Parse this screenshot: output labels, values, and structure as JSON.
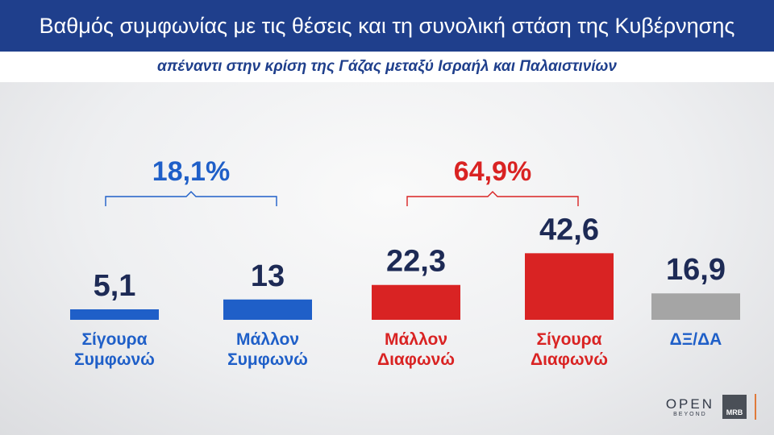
{
  "header": {
    "title": "Βαθμός συμφωνίας με τις θέσεις και τη συνολική στάση της Κυβέρνησης",
    "subtitle": "απέναντι στην κρίση της Γάζας μεταξύ Ισραήλ και Παλαιστινίων"
  },
  "chart_data": {
    "type": "bar",
    "title": "Βαθμός συμφωνίας με τις θέσεις και τη συνολική στάση της Κυβέρνησης",
    "subtitle": "απέναντι στην κρίση της Γάζας μεταξύ Ισραήλ και Παλαιστινίων",
    "categories": [
      "Σίγουρα Συμφωνώ",
      "Μάλλον Συμφωνώ",
      "Μάλλον Διαφωνώ",
      "Σίγουρα Διαφωνώ",
      "ΔΞ/ΔΑ"
    ],
    "category_lines": [
      [
        "Σίγουρα",
        "Συμφωνώ"
      ],
      [
        "Μάλλον",
        "Συμφωνώ"
      ],
      [
        "Μάλλον",
        "Διαφωνώ"
      ],
      [
        "Σίγουρα",
        "Διαφωνώ"
      ],
      [
        "ΔΞ/ΔΑ"
      ]
    ],
    "values": [
      5.1,
      13,
      22.3,
      42.6,
      16.9
    ],
    "value_labels": [
      "5,1",
      "13",
      "22,3",
      "42,6",
      "16,9"
    ],
    "bar_colors": [
      "#1f5fc8",
      "#1f5fc8",
      "#d92323",
      "#d92323",
      "#a5a5a5"
    ],
    "label_colors": [
      "#1f5fc8",
      "#1f5fc8",
      "#d92323",
      "#d92323",
      "#1f5fc8"
    ],
    "groups": [
      {
        "label": "18,1%",
        "value": 18.1,
        "categories": [
          0,
          1
        ],
        "color": "#1f5fc8"
      },
      {
        "label": "64,9%",
        "value": 64.9,
        "categories": [
          2,
          3
        ],
        "color": "#d92323"
      }
    ],
    "xlabel": "",
    "ylabel": "",
    "grid": false,
    "legend": "none"
  },
  "logos": {
    "open_main": "OPEN",
    "open_sub": "BEYOND",
    "mrb": "MRB"
  }
}
